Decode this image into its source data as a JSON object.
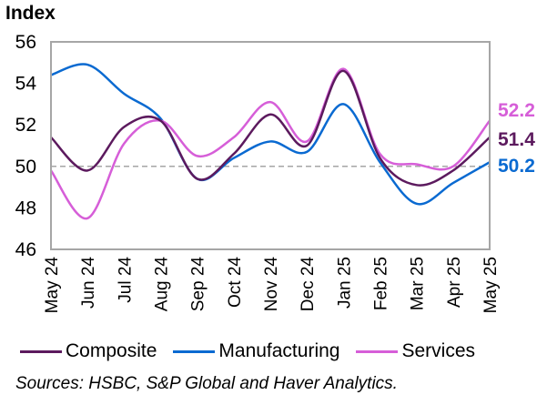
{
  "chart_data": {
    "type": "line",
    "title": "",
    "ylabel": "Index",
    "xlabel": "",
    "ylim": [
      46,
      56
    ],
    "yticks": [
      46,
      48,
      50,
      52,
      54,
      56
    ],
    "reference_line": 50,
    "grid": false,
    "categories": [
      "May 24",
      "Jun 24",
      "Jul 24",
      "Aug 24",
      "Sep 24",
      "Oct 24",
      "Nov 24",
      "Dec 24",
      "Jan 25",
      "Feb 25",
      "Mar 25",
      "Apr 25",
      "May 25"
    ],
    "series": [
      {
        "name": "Composite",
        "color": "#5c1a5e",
        "values": [
          51.4,
          49.8,
          51.9,
          52.2,
          49.4,
          50.6,
          52.5,
          51.0,
          54.6,
          50.4,
          49.1,
          49.8,
          51.4
        ],
        "end_label": "51.4"
      },
      {
        "name": "Manufacturing",
        "color": "#0a6ad1",
        "values": [
          54.4,
          54.9,
          53.5,
          52.3,
          49.4,
          50.4,
          51.2,
          50.7,
          53.0,
          50.2,
          48.2,
          49.2,
          50.2
        ],
        "end_label": "50.2"
      },
      {
        "name": "Services",
        "color": "#d65ed8",
        "values": [
          49.8,
          47.5,
          51.1,
          52.2,
          50.5,
          51.4,
          53.1,
          51.2,
          54.7,
          50.6,
          50.1,
          50.0,
          52.2
        ],
        "end_label": "52.2"
      }
    ],
    "legend_position": "bottom"
  },
  "legend": {
    "items": [
      {
        "label": "Composite",
        "color": "#5c1a5e"
      },
      {
        "label": "Manufacturing",
        "color": "#0a6ad1"
      },
      {
        "label": "Services",
        "color": "#d65ed8"
      }
    ]
  },
  "source_note": "Sources: HSBC, S&P Global and Haver Analytics."
}
